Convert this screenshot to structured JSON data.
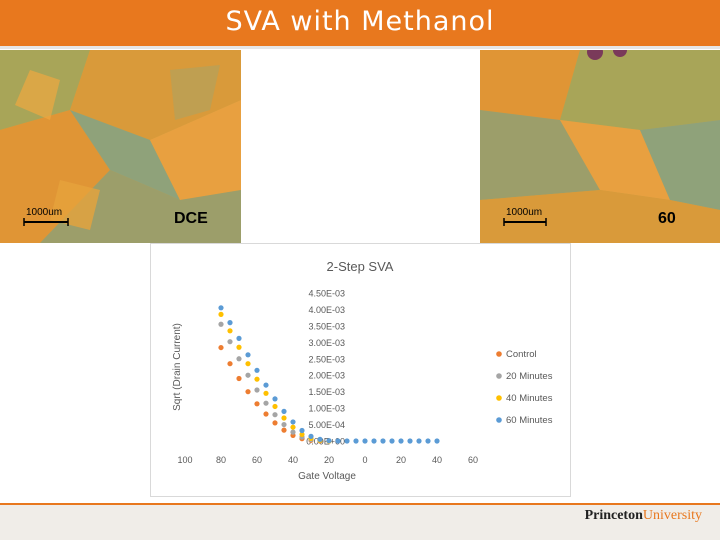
{
  "slide": {
    "title": "SVA with Methanol",
    "brand_bold": "Princeton",
    "brand_rest": "University"
  },
  "images": {
    "left": {
      "scale_label": "1000um",
      "tag": "DCE"
    },
    "right": {
      "scale_label": "1000um",
      "tag": "60"
    }
  },
  "colors": {
    "accent": "#e8781e",
    "control": "#ed7d31",
    "m20": "#a5a5a5",
    "m40": "#ffc000",
    "m60": "#5b9bd5"
  },
  "chart_data": {
    "type": "scatter",
    "title": "2-Step SVA",
    "xlabel": "Gate Voltage",
    "ylabel": "Sqrt (Drain Current)",
    "xticks": [
      "100",
      "80",
      "60",
      "40",
      "20",
      "0",
      "20",
      "40",
      "60"
    ],
    "yticks": [
      "0.00E+00",
      "5.00E-04",
      "1.00E-03",
      "1.50E-03",
      "2.00E-03",
      "2.50E-03",
      "3.00E-03",
      "3.50E-03",
      "4.00E-03",
      "4.50E-03"
    ],
    "xlim": [
      -100,
      60
    ],
    "ylim": [
      0,
      0.0045
    ],
    "legend": "right",
    "series": [
      {
        "name": "Control",
        "color": "#ed7d31",
        "x": [
          -80,
          -75,
          -70,
          -65,
          -60,
          -55,
          -50,
          -45,
          -40,
          -35,
          -30,
          -25,
          -20
        ],
        "y": [
          0.00284,
          0.00235,
          0.0019,
          0.0015,
          0.00113,
          0.00082,
          0.00055,
          0.00033,
          0.00017,
          7e-05,
          2e-05,
          0.0,
          0.0
        ]
      },
      {
        "name": "20 Minutes",
        "color": "#a5a5a5",
        "x": [
          -80,
          -75,
          -70,
          -65,
          -60,
          -55,
          -50,
          -45,
          -40,
          -35,
          -30,
          -25,
          -20
        ],
        "y": [
          0.00355,
          0.00302,
          0.0025,
          0.002,
          0.00155,
          0.00115,
          0.0008,
          0.0005,
          0.00027,
          0.00012,
          4e-05,
          1e-05,
          0.0
        ]
      },
      {
        "name": "40 Minutes",
        "color": "#ffc000",
        "x": [
          -80,
          -75,
          -70,
          -65,
          -60,
          -55,
          -50,
          -45,
          -40,
          -35,
          -30,
          -25,
          -20
        ],
        "y": [
          0.00385,
          0.00335,
          0.00285,
          0.00235,
          0.00188,
          0.00145,
          0.00105,
          0.0007,
          0.00042,
          0.0002,
          8e-05,
          2e-05,
          0.0
        ]
      },
      {
        "name": "60 Minutes",
        "color": "#5b9bd5",
        "x": [
          -80,
          -75,
          -70,
          -65,
          -60,
          -55,
          -50,
          -45,
          -40,
          -35,
          -30,
          -25,
          -20,
          -15,
          -10,
          -5,
          0,
          5,
          10,
          15,
          20,
          25,
          30,
          35,
          40
        ],
        "y": [
          0.00405,
          0.0036,
          0.00312,
          0.00262,
          0.00215,
          0.0017,
          0.00128,
          0.0009,
          0.00058,
          0.00032,
          0.00014,
          5e-05,
          1e-05,
          0.0,
          0.0,
          0.0,
          0.0,
          0.0,
          0.0,
          0.0,
          0.0,
          0.0,
          0.0,
          0.0,
          0.0
        ]
      }
    ]
  }
}
